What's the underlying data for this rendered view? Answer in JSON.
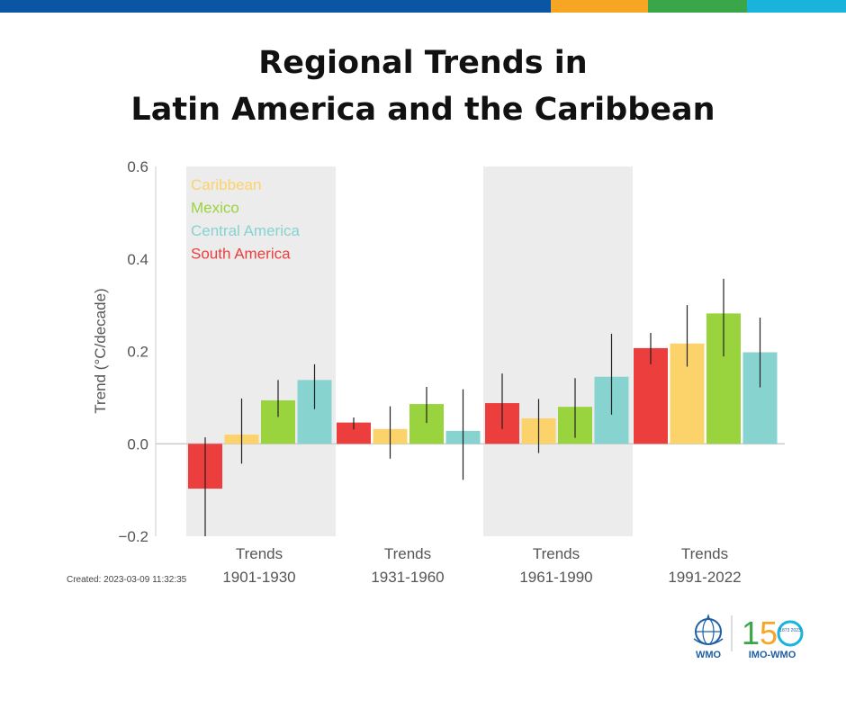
{
  "header": {
    "title_line1": "Regional Trends in",
    "title_line2": "Latin America and the Caribbean",
    "bar_colors": [
      "#0a55a4",
      "#f6a623",
      "#3aa64a",
      "#1ab3dc"
    ]
  },
  "chart_data": {
    "type": "bar",
    "ylabel": "Trend (°C/decade)",
    "ylim": [
      -0.2,
      0.6
    ],
    "yticks": [
      "−0.2",
      "0.0",
      "0.2",
      "0.4",
      "0.6"
    ],
    "ytick_values": [
      -0.2,
      0.0,
      0.2,
      0.4,
      0.6
    ],
    "legend_placement": "top-left",
    "legend": [
      {
        "name": "Caribbean",
        "color": "#fcd36b"
      },
      {
        "name": "Mexico",
        "color": "#99d33d"
      },
      {
        "name": "Central America",
        "color": "#86d3cf"
      },
      {
        "name": "South America",
        "color": "#ed3e3e"
      }
    ],
    "groups": [
      {
        "label_top": "Trends",
        "label_bottom": "1901-1930",
        "shaded": true
      },
      {
        "label_top": "Trends",
        "label_bottom": "1931-1960",
        "shaded": false
      },
      {
        "label_top": "Trends",
        "label_bottom": "1961-1990",
        "shaded": true
      },
      {
        "label_top": "Trends",
        "label_bottom": "1991-2022",
        "shaded": false
      }
    ],
    "bar_order": [
      "South America",
      "Caribbean",
      "Mexico",
      "Central America"
    ],
    "series": [
      {
        "color": "#ed3e3e",
        "values": [
          -0.097,
          0.046,
          0.088,
          0.207
        ],
        "err_low": [
          -0.2,
          0.031,
          0.032,
          0.172
        ],
        "err_high": [
          0.014,
          0.057,
          0.152,
          0.24
        ]
      },
      {
        "color": "#fcd36b",
        "values": [
          0.02,
          0.032,
          0.055,
          0.217
        ],
        "err_low": [
          -0.043,
          -0.032,
          -0.02,
          0.167
        ],
        "err_high": [
          0.098,
          0.081,
          0.097,
          0.3
        ]
      },
      {
        "color": "#99d33d",
        "values": [
          0.094,
          0.086,
          0.08,
          0.282
        ],
        "err_low": [
          0.058,
          0.045,
          0.013,
          0.189
        ],
        "err_high": [
          0.138,
          0.123,
          0.142,
          0.357
        ]
      },
      {
        "color": "#86d3cf",
        "values": [
          0.138,
          0.028,
          0.145,
          0.198
        ],
        "err_low": [
          0.075,
          -0.078,
          0.063,
          0.122
        ],
        "err_high": [
          0.172,
          0.118,
          0.238,
          0.273
        ]
      }
    ]
  },
  "footer": {
    "created": "Created: 2023-03-09 11:32:35",
    "wmo_label": "WMO",
    "imo_label": "IMO-WMO",
    "anniversary_years": "1873 2023"
  }
}
